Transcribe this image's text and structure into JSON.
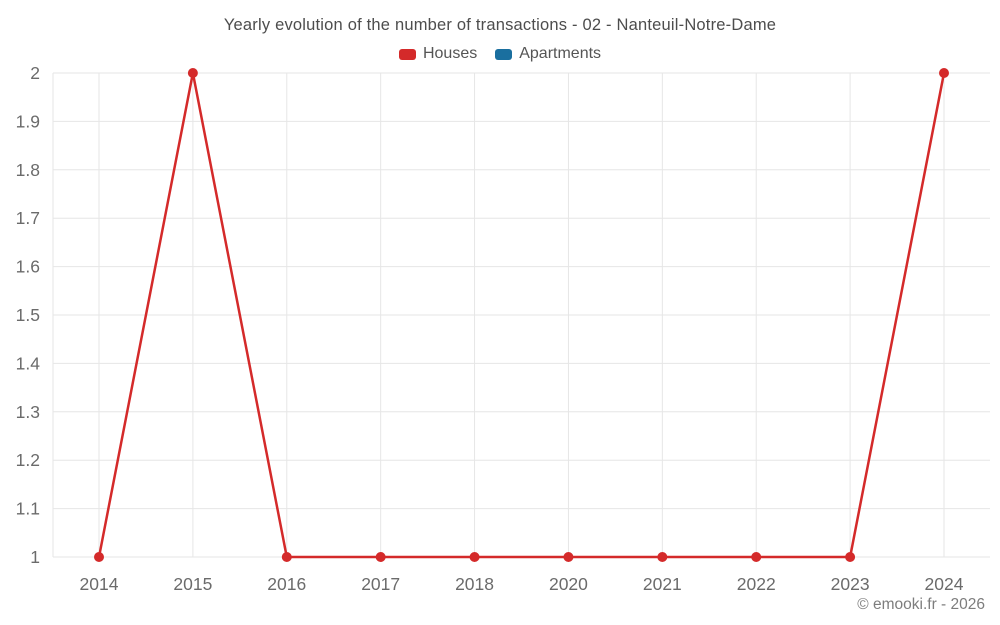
{
  "chart_data": {
    "type": "line",
    "title": "Yearly evolution of the number of transactions - 02 - Nanteuil-Notre-Dame",
    "categories": [
      "2014",
      "2015",
      "2016",
      "2017",
      "2018",
      "2020",
      "2021",
      "2022",
      "2023",
      "2024"
    ],
    "series": [
      {
        "name": "Houses",
        "color": "#d42a2a",
        "values": [
          1,
          2,
          1,
          1,
          1,
          1,
          1,
          1,
          1,
          2
        ]
      },
      {
        "name": "Apartments",
        "color": "#1a6f9f",
        "values": []
      }
    ],
    "xlabel": "",
    "ylabel": "",
    "ylim": [
      1,
      2
    ],
    "y_ticks": [
      1,
      1.1,
      1.2,
      1.3,
      1.4,
      1.5,
      1.6,
      1.7,
      1.8,
      1.9,
      2
    ],
    "grid": true,
    "legend_position": "top",
    "grid_color": "#e6e6e6",
    "tick_label_color": "#6b6b6b"
  },
  "footer": {
    "text": "© emooki.fr - 2026"
  }
}
